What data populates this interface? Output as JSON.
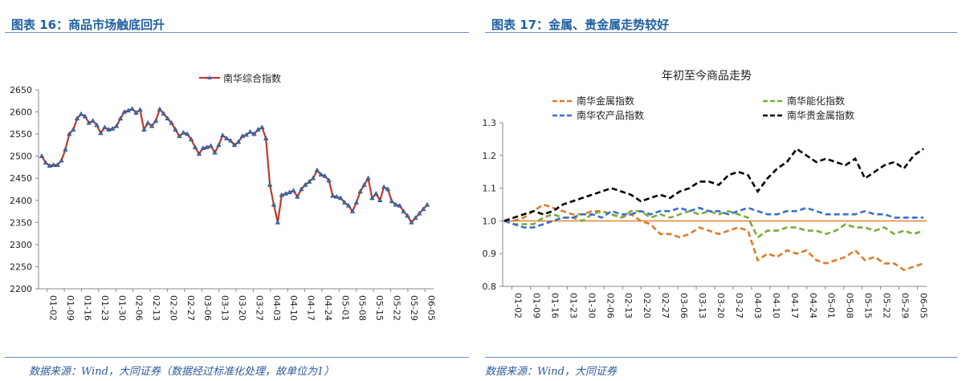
{
  "figures": [
    {
      "title": "图表 16：商品市场触底回升",
      "source": "数据来源：Wind，大同证券（数据经过标准化处理，故单位为1）"
    },
    {
      "title": "图表 17：金属、贵金属走势较好",
      "source": "数据来源：Wind，大同证券"
    }
  ],
  "colors": {
    "figure_title": "#1f5fa0",
    "source_text": "#2d5a9b",
    "series1": "#c0392b",
    "series1_marker": "#3a6fb5",
    "metal": "#e07b2a",
    "energy_chem": "#7cab3a",
    "agri": "#3a6fd0",
    "precious": "#000000",
    "baseline": "#e07b2a"
  },
  "chart_data": [
    {
      "type": "line",
      "title": "",
      "legend": [
        "南华综合指数"
      ],
      "legend_position": "top",
      "xlabel": "",
      "ylabel": "",
      "ylim": [
        2200,
        2650
      ],
      "yticks": [
        "2200",
        "2250",
        "2300",
        "2350",
        "2400",
        "2450",
        "2500",
        "2550",
        "2600",
        "2650"
      ],
      "xticks": [
        "01-02",
        "01-09",
        "01-16",
        "01-23",
        "01-30",
        "02-06",
        "02-13",
        "02-20",
        "02-27",
        "03-06",
        "03-13",
        "03-20",
        "03-27",
        "04-03",
        "04-10",
        "04-17",
        "04-24",
        "05-01",
        "05-08",
        "05-15",
        "05-22",
        "05-29",
        "06-05"
      ],
      "series": [
        {
          "name": "南华综合指数",
          "values": [
            2500,
            2485,
            2478,
            2480,
            2480,
            2490,
            2515,
            2550,
            2560,
            2585,
            2595,
            2590,
            2575,
            2580,
            2570,
            2552,
            2565,
            2560,
            2562,
            2568,
            2585,
            2600,
            2603,
            2607,
            2598,
            2605,
            2560,
            2575,
            2568,
            2580,
            2606,
            2596,
            2585,
            2575,
            2560,
            2545,
            2553,
            2550,
            2538,
            2520,
            2505,
            2518,
            2520,
            2523,
            2508,
            2525,
            2547,
            2540,
            2535,
            2525,
            2532,
            2545,
            2548,
            2555,
            2550,
            2560,
            2565,
            2540,
            2435,
            2390,
            2350,
            2412,
            2415,
            2418,
            2422,
            2408,
            2425,
            2435,
            2442,
            2450,
            2468,
            2458,
            2455,
            2445,
            2410,
            2408,
            2405,
            2395,
            2388,
            2375,
            2395,
            2420,
            2435,
            2450,
            2405,
            2415,
            2400,
            2430,
            2425,
            2398,
            2390,
            2388,
            2375,
            2365,
            2350,
            2360,
            2370,
            2380,
            2390
          ]
        }
      ]
    },
    {
      "type": "line",
      "title": "年初至今商品走势",
      "legend": [
        "南华金属指数",
        "南华能化指数",
        "南华农产品指数",
        "南华贵金属指数"
      ],
      "legend_position": "top",
      "xlabel": "",
      "ylabel": "",
      "ylim": [
        0.8,
        1.3
      ],
      "yticks": [
        "0.8",
        "0.9",
        "1.0",
        "1.1",
        "1.2",
        "1.3"
      ],
      "xticks": [
        "01-02",
        "01-09",
        "01-16",
        "01-23",
        "01-30",
        "02-06",
        "02-13",
        "02-20",
        "02-27",
        "03-06",
        "03-13",
        "03-20",
        "03-27",
        "04-03",
        "04-10",
        "04-17",
        "04-24",
        "05-01",
        "05-08",
        "05-15",
        "05-22",
        "05-29",
        "06-05"
      ],
      "baseline": 1.0,
      "series": [
        {
          "name": "南华金属指数",
          "values": [
            1.0,
            1.0,
            1.01,
            1.03,
            1.05,
            1.04,
            1.03,
            1.02,
            1.02,
            1.03,
            1.03,
            1.02,
            1.01,
            1.02,
            1.0,
            0.99,
            0.96,
            0.96,
            0.95,
            0.96,
            0.98,
            0.97,
            0.96,
            0.97,
            0.98,
            0.97,
            0.88,
            0.9,
            0.89,
            0.91,
            0.9,
            0.91,
            0.88,
            0.87,
            0.88,
            0.89,
            0.91,
            0.88,
            0.89,
            0.87,
            0.87,
            0.85,
            0.86,
            0.87
          ]
        },
        {
          "name": "南华能化指数",
          "values": [
            1.0,
            0.99,
            0.99,
            0.99,
            1.01,
            1.02,
            1.01,
            1.01,
            1.0,
            1.02,
            1.03,
            1.02,
            1.01,
            1.03,
            1.03,
            1.01,
            1.02,
            1.01,
            1.02,
            1.03,
            1.02,
            1.03,
            1.02,
            1.03,
            1.02,
            1.01,
            0.95,
            0.97,
            0.97,
            0.98,
            0.98,
            0.97,
            0.97,
            0.96,
            0.97,
            0.99,
            0.98,
            0.98,
            0.97,
            0.98,
            0.96,
            0.97,
            0.96,
            0.97
          ]
        },
        {
          "name": "南华农产品指数",
          "values": [
            1.0,
            0.99,
            0.98,
            0.98,
            0.99,
            1.0,
            1.01,
            1.01,
            1.02,
            1.02,
            1.01,
            1.03,
            1.02,
            1.02,
            1.03,
            1.02,
            1.03,
            1.03,
            1.04,
            1.03,
            1.04,
            1.03,
            1.03,
            1.02,
            1.03,
            1.04,
            1.03,
            1.02,
            1.02,
            1.03,
            1.03,
            1.04,
            1.03,
            1.02,
            1.02,
            1.02,
            1.02,
            1.03,
            1.02,
            1.02,
            1.01,
            1.01,
            1.01,
            1.01
          ]
        },
        {
          "name": "南华贵金属指数",
          "values": [
            1.0,
            1.01,
            1.02,
            1.03,
            1.02,
            1.03,
            1.05,
            1.06,
            1.07,
            1.08,
            1.09,
            1.1,
            1.09,
            1.08,
            1.06,
            1.07,
            1.08,
            1.07,
            1.09,
            1.1,
            1.12,
            1.12,
            1.11,
            1.14,
            1.15,
            1.14,
            1.09,
            1.13,
            1.16,
            1.18,
            1.22,
            1.2,
            1.18,
            1.19,
            1.18,
            1.17,
            1.19,
            1.13,
            1.15,
            1.17,
            1.18,
            1.16,
            1.2,
            1.22
          ]
        }
      ]
    }
  ]
}
